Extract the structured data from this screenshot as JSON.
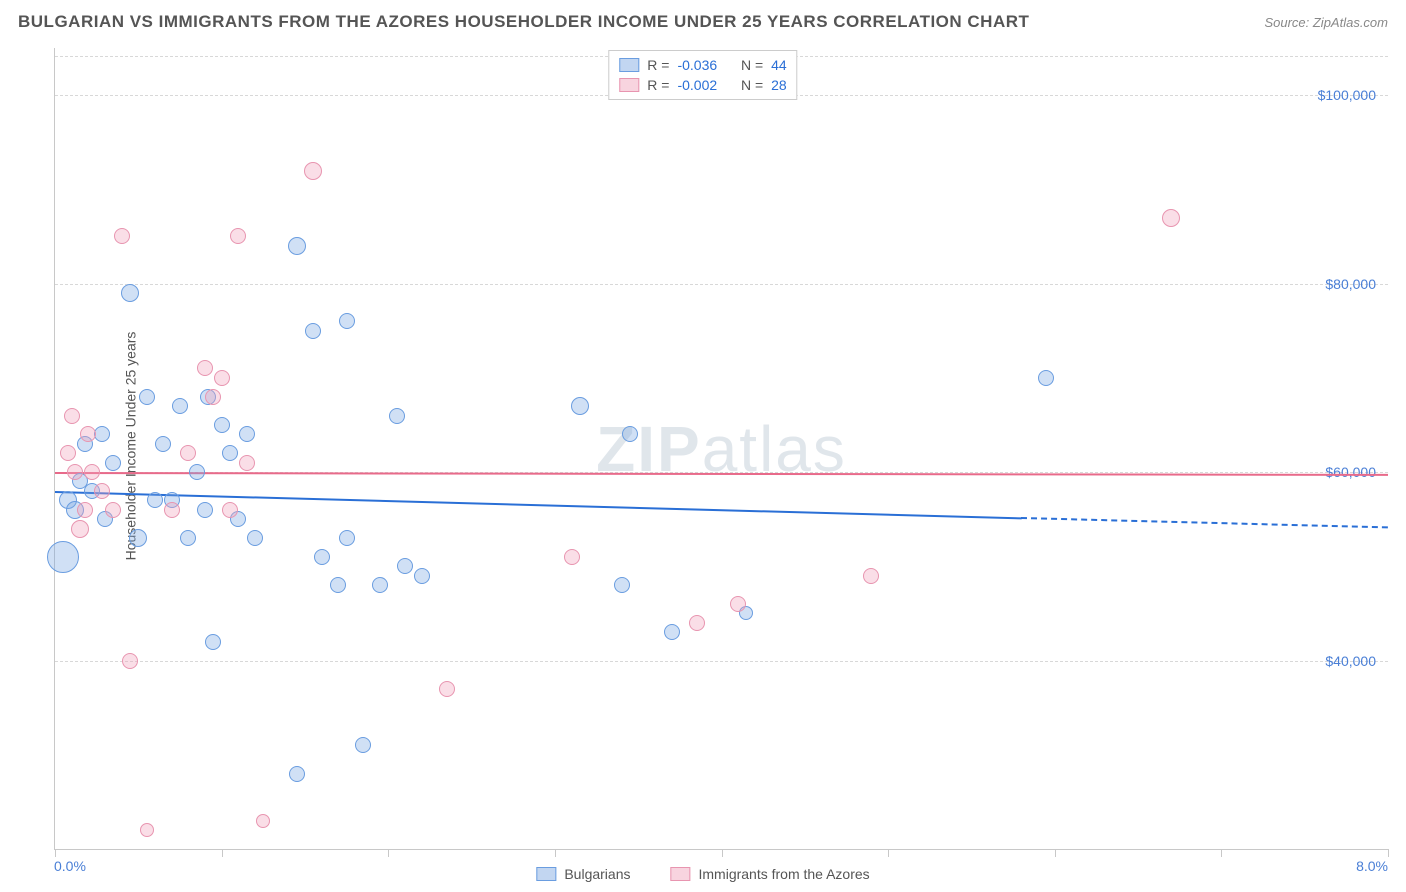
{
  "header": {
    "title": "BULGARIAN VS IMMIGRANTS FROM THE AZORES HOUSEHOLDER INCOME UNDER 25 YEARS CORRELATION CHART",
    "source_label": "Source: ",
    "source_name": "ZipAtlas.com"
  },
  "watermark": {
    "part1": "ZIP",
    "part2": "atlas"
  },
  "chart": {
    "type": "scatter",
    "x_axis": {
      "min": 0.0,
      "max": 8.0,
      "min_label": "0.0%",
      "max_label": "8.0%",
      "tick_positions_pct": [
        0,
        12.5,
        25,
        37.5,
        50,
        62.5,
        75,
        87.5,
        100
      ]
    },
    "y_axis": {
      "min": 20000,
      "max": 105000,
      "title": "Householder Income Under 25 years",
      "ticks": [
        {
          "value": 40000,
          "label": "$40,000"
        },
        {
          "value": 60000,
          "label": "$60,000"
        },
        {
          "value": 80000,
          "label": "$80,000"
        },
        {
          "value": 100000,
          "label": "$100,000"
        }
      ]
    },
    "colors": {
      "series_a_fill": "rgba(120,165,225,0.35)",
      "series_a_stroke": "#6a9de0",
      "series_a_trend": "#2a6fd6",
      "series_b_fill": "rgba(240,160,185,0.35)",
      "series_b_stroke": "#e895b0",
      "series_b_trend": "#e86a8a",
      "grid": "#d8d8d8",
      "axis": "#c8c8c8",
      "tick_label": "#4a7fd6",
      "title_text": "#555555",
      "background": "#ffffff"
    },
    "legend_top": {
      "rows": [
        {
          "swatch": "blue",
          "r_label": "R =",
          "r_value": "-0.036",
          "n_label": "N =",
          "n_value": "44"
        },
        {
          "swatch": "pink",
          "r_label": "R =",
          "r_value": "-0.002",
          "n_label": "N =",
          "n_value": "28"
        }
      ]
    },
    "legend_bottom": {
      "items": [
        {
          "swatch": "blue",
          "label": "Bulgarians"
        },
        {
          "swatch": "pink",
          "label": "Immigrants from the Azores"
        }
      ]
    },
    "trend_lines": {
      "pink": {
        "y_start": 60000,
        "y_end": 59800,
        "x_start": 0.0,
        "x_end": 8.0
      },
      "blue_solid": {
        "y_start": 58000,
        "y_end": 55200,
        "x_start": 0.0,
        "x_end": 5.8
      },
      "blue_dashed": {
        "y_start": 55200,
        "y_end": 54200,
        "x_start": 5.8,
        "x_end": 8.0
      }
    },
    "series": [
      {
        "name": "Bulgarians",
        "color": "blue",
        "points": [
          {
            "x": 0.05,
            "y": 51000,
            "r": 16
          },
          {
            "x": 0.08,
            "y": 57000,
            "r": 9
          },
          {
            "x": 0.12,
            "y": 56000,
            "r": 9
          },
          {
            "x": 0.15,
            "y": 59000,
            "r": 8
          },
          {
            "x": 0.18,
            "y": 63000,
            "r": 8
          },
          {
            "x": 0.22,
            "y": 58000,
            "r": 8
          },
          {
            "x": 0.28,
            "y": 64000,
            "r": 8
          },
          {
            "x": 0.3,
            "y": 55000,
            "r": 8
          },
          {
            "x": 0.35,
            "y": 61000,
            "r": 8
          },
          {
            "x": 0.45,
            "y": 79000,
            "r": 9
          },
          {
            "x": 0.5,
            "y": 53000,
            "r": 9
          },
          {
            "x": 0.55,
            "y": 68000,
            "r": 8
          },
          {
            "x": 0.6,
            "y": 57000,
            "r": 8
          },
          {
            "x": 0.65,
            "y": 63000,
            "r": 8
          },
          {
            "x": 0.7,
            "y": 57000,
            "r": 8
          },
          {
            "x": 0.75,
            "y": 67000,
            "r": 8
          },
          {
            "x": 0.8,
            "y": 53000,
            "r": 8
          },
          {
            "x": 0.85,
            "y": 60000,
            "r": 8
          },
          {
            "x": 0.9,
            "y": 56000,
            "r": 8
          },
          {
            "x": 0.92,
            "y": 68000,
            "r": 8
          },
          {
            "x": 0.95,
            "y": 42000,
            "r": 8
          },
          {
            "x": 1.0,
            "y": 65000,
            "r": 8
          },
          {
            "x": 1.05,
            "y": 62000,
            "r": 8
          },
          {
            "x": 1.1,
            "y": 55000,
            "r": 8
          },
          {
            "x": 1.15,
            "y": 64000,
            "r": 8
          },
          {
            "x": 1.2,
            "y": 53000,
            "r": 8
          },
          {
            "x": 1.45,
            "y": 84000,
            "r": 9
          },
          {
            "x": 1.45,
            "y": 28000,
            "r": 8
          },
          {
            "x": 1.55,
            "y": 75000,
            "r": 8
          },
          {
            "x": 1.6,
            "y": 51000,
            "r": 8
          },
          {
            "x": 1.7,
            "y": 48000,
            "r": 8
          },
          {
            "x": 1.75,
            "y": 76000,
            "r": 8
          },
          {
            "x": 1.75,
            "y": 53000,
            "r": 8
          },
          {
            "x": 1.85,
            "y": 31000,
            "r": 8
          },
          {
            "x": 1.95,
            "y": 48000,
            "r": 8
          },
          {
            "x": 2.05,
            "y": 66000,
            "r": 8
          },
          {
            "x": 2.1,
            "y": 50000,
            "r": 8
          },
          {
            "x": 2.2,
            "y": 49000,
            "r": 8
          },
          {
            "x": 3.15,
            "y": 67000,
            "r": 9
          },
          {
            "x": 3.4,
            "y": 48000,
            "r": 8
          },
          {
            "x": 3.45,
            "y": 64000,
            "r": 8
          },
          {
            "x": 3.7,
            "y": 43000,
            "r": 8
          },
          {
            "x": 5.95,
            "y": 70000,
            "r": 8
          },
          {
            "x": 4.15,
            "y": 45000,
            "r": 7
          }
        ]
      },
      {
        "name": "Immigrants from the Azores",
        "color": "pink",
        "points": [
          {
            "x": 0.08,
            "y": 62000,
            "r": 8
          },
          {
            "x": 0.1,
            "y": 66000,
            "r": 8
          },
          {
            "x": 0.12,
            "y": 60000,
            "r": 8
          },
          {
            "x": 0.15,
            "y": 54000,
            "r": 9
          },
          {
            "x": 0.18,
            "y": 56000,
            "r": 8
          },
          {
            "x": 0.2,
            "y": 64000,
            "r": 8
          },
          {
            "x": 0.22,
            "y": 60000,
            "r": 8
          },
          {
            "x": 0.28,
            "y": 58000,
            "r": 8
          },
          {
            "x": 0.35,
            "y": 56000,
            "r": 8
          },
          {
            "x": 0.4,
            "y": 85000,
            "r": 8
          },
          {
            "x": 0.45,
            "y": 40000,
            "r": 8
          },
          {
            "x": 0.55,
            "y": 22000,
            "r": 7
          },
          {
            "x": 0.7,
            "y": 56000,
            "r": 8
          },
          {
            "x": 0.8,
            "y": 62000,
            "r": 8
          },
          {
            "x": 0.9,
            "y": 71000,
            "r": 8
          },
          {
            "x": 0.95,
            "y": 68000,
            "r": 8
          },
          {
            "x": 1.0,
            "y": 70000,
            "r": 8
          },
          {
            "x": 1.05,
            "y": 56000,
            "r": 8
          },
          {
            "x": 1.1,
            "y": 85000,
            "r": 8
          },
          {
            "x": 1.15,
            "y": 61000,
            "r": 8
          },
          {
            "x": 1.55,
            "y": 92000,
            "r": 9
          },
          {
            "x": 2.35,
            "y": 37000,
            "r": 8
          },
          {
            "x": 3.1,
            "y": 51000,
            "r": 8
          },
          {
            "x": 3.85,
            "y": 44000,
            "r": 8
          },
          {
            "x": 4.1,
            "y": 46000,
            "r": 8
          },
          {
            "x": 4.9,
            "y": 49000,
            "r": 8
          },
          {
            "x": 6.7,
            "y": 87000,
            "r": 9
          },
          {
            "x": 1.25,
            "y": 23000,
            "r": 7
          }
        ]
      }
    ]
  }
}
